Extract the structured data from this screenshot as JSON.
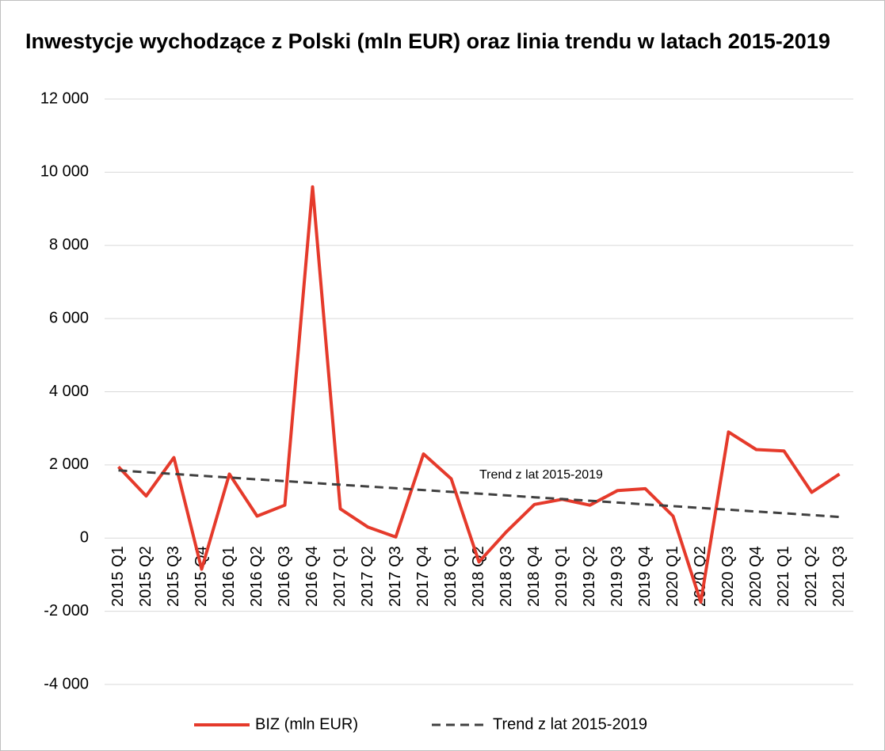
{
  "chart_data": {
    "type": "line",
    "title": "Inwestycje wychodzące z Polski (mln EUR) oraz linia trendu w latach 2015-2019",
    "categories": [
      "2015 Q1",
      "2015 Q2",
      "2015 Q3",
      "2015 Q4",
      "2016 Q1",
      "2016 Q2",
      "2016 Q3",
      "2016 Q4",
      "2017 Q1",
      "2017 Q2",
      "2017 Q3",
      "2017 Q4",
      "2018 Q1",
      "2018 Q2",
      "2018 Q3",
      "2018 Q4",
      "2019 Q1",
      "2019 Q2",
      "2019 Q3",
      "2019 Q4",
      "2020 Q1",
      "2020 Q2",
      "2020 Q3",
      "2020 Q4",
      "2021 Q1",
      "2021 Q2",
      "2021 Q3"
    ],
    "series": [
      {
        "name": "BIZ (mln EUR)",
        "color": "#e53a2b",
        "dashed": false,
        "values": [
          1950,
          1150,
          2200,
          -850,
          1750,
          600,
          900,
          9600,
          800,
          300,
          30,
          2300,
          1620,
          -650,
          180,
          920,
          1060,
          900,
          1300,
          1350,
          600,
          -1750,
          2900,
          2420,
          2380,
          1250,
          1750
        ]
      },
      {
        "name": "Trend z lat 2015-2019",
        "color": "#404040",
        "dashed": true,
        "values": [
          1850,
          1801,
          1752,
          1703,
          1655,
          1606,
          1557,
          1508,
          1459,
          1410,
          1362,
          1313,
          1264,
          1215,
          1166,
          1117,
          1069,
          1020,
          971,
          922,
          873,
          824,
          776,
          727,
          678,
          629,
          580
        ]
      }
    ],
    "annotation": "Trend z lat 2015-2019",
    "ylim": [
      -4000,
      12000
    ],
    "yticks": [
      {
        "value": -4000,
        "label": "-4 000"
      },
      {
        "value": -2000,
        "label": "-2 000"
      },
      0,
      {
        "value": 2000,
        "label": "2 000"
      },
      {
        "value": 4000,
        "label": "4 000"
      },
      {
        "value": 6000,
        "label": "6 000"
      },
      {
        "value": 8000,
        "label": "8 000"
      },
      {
        "value": 10000,
        "label": "10 000"
      },
      {
        "value": 12000,
        "label": "12 000"
      }
    ],
    "grid": true,
    "legend": "bottom"
  }
}
